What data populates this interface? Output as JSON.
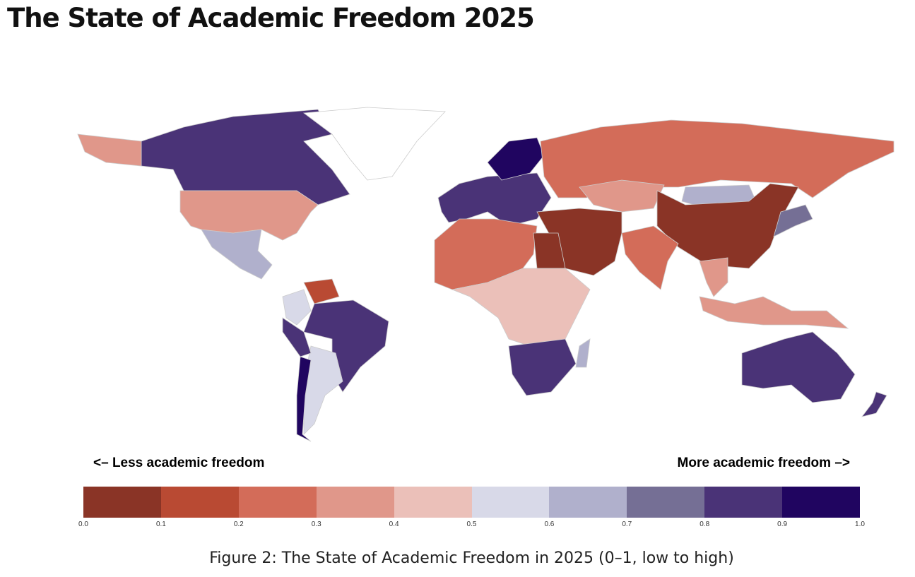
{
  "title": "The State of Academic Freedom 2025",
  "caption": "Figure 2: The State of Academic Freedom in 2025 (0–1, low to high)",
  "chart_data": {
    "type": "choropleth",
    "title": "The State of Academic Freedom 2025",
    "scale_label_low": "<– Less academic freedom",
    "scale_label_high": "More academic freedom –>",
    "ticks": [
      "0.0",
      "0.1",
      "0.2",
      "0.3",
      "0.4",
      "0.5",
      "0.6",
      "0.7",
      "0.8",
      "0.9",
      "1.0"
    ],
    "bins": [
      {
        "range": [
          0.0,
          0.1
        ],
        "color": "#8a3426"
      },
      {
        "range": [
          0.1,
          0.2
        ],
        "color": "#b94a33"
      },
      {
        "range": [
          0.2,
          0.3
        ],
        "color": "#d36c59"
      },
      {
        "range": [
          0.3,
          0.4
        ],
        "color": "#e0978a"
      },
      {
        "range": [
          0.4,
          0.5
        ],
        "color": "#ebc0b9"
      },
      {
        "range": [
          0.5,
          0.6
        ],
        "color": "#d8d9e8"
      },
      {
        "range": [
          0.6,
          0.7
        ],
        "color": "#b0b0cc"
      },
      {
        "range": [
          0.7,
          0.8
        ],
        "color": "#756f95"
      },
      {
        "range": [
          0.8,
          0.9
        ],
        "color": "#4a3377"
      },
      {
        "range": [
          0.9,
          1.0
        ],
        "color": "#200560"
      }
    ],
    "regions": [
      {
        "name": "Canada",
        "value": 0.85
      },
      {
        "name": "Alaska/USA",
        "value": 0.35
      },
      {
        "name": "Greenland",
        "value": null
      },
      {
        "name": "Mexico",
        "value": 0.65
      },
      {
        "name": "Brazil",
        "value": 0.85
      },
      {
        "name": "Argentina",
        "value": 0.55
      },
      {
        "name": "Chile",
        "value": 0.9
      },
      {
        "name": "Venezuela",
        "value": 0.15
      },
      {
        "name": "Colombia",
        "value": 0.55
      },
      {
        "name": "Peru",
        "value": 0.85
      },
      {
        "name": "Europe",
        "value": 0.8
      },
      {
        "name": "Scandinavia",
        "value": 0.9
      },
      {
        "name": "Russia",
        "value": 0.25
      },
      {
        "name": "Kazakhstan",
        "value": 0.35
      },
      {
        "name": "Mongolia",
        "value": 0.65
      },
      {
        "name": "China",
        "value": 0.05
      },
      {
        "name": "Japan",
        "value": 0.75
      },
      {
        "name": "India",
        "value": 0.25
      },
      {
        "name": "Middle East",
        "value": 0.05
      },
      {
        "name": "North Africa",
        "value": 0.25
      },
      {
        "name": "Egypt",
        "value": 0.05
      },
      {
        "name": "Central Africa",
        "value": 0.45
      },
      {
        "name": "Southern Africa",
        "value": 0.8
      },
      {
        "name": "Madagascar",
        "value": 0.65
      },
      {
        "name": "Southeast Asia",
        "value": 0.35
      },
      {
        "name": "Australia",
        "value": 0.85
      },
      {
        "name": "New Zealand",
        "value": 0.85
      }
    ]
  }
}
